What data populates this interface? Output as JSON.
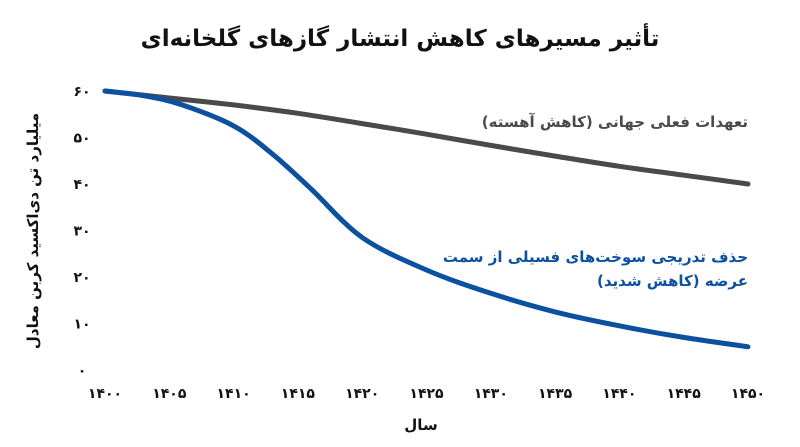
{
  "chart_data": {
    "type": "line",
    "title": "تأثیر مسیرهای کاهش انتشار گازهای گلخانه‌ای",
    "xlabel": "سال",
    "ylabel": "میلیارد تن دی‌اکسید کربن معادل",
    "xlim": [
      1400,
      1450
    ],
    "ylim": [
      0,
      60
    ],
    "grid": false,
    "x_ticks": [
      1400,
      1405,
      1410,
      1415,
      1420,
      1425,
      1430,
      1435,
      1440,
      1445,
      1450
    ],
    "x_tick_labels": [
      "۱۴۰۰",
      "۱۴۰۵",
      "۱۴۱۰",
      "۱۴۱۵",
      "۱۴۲۰",
      "۱۴۲۵",
      "۱۴۳۰",
      "۱۴۳۵",
      "۱۴۴۰",
      "۱۴۴۵",
      "۱۴۵۰"
    ],
    "y_ticks": [
      0,
      10,
      20,
      30,
      40,
      50,
      60
    ],
    "y_tick_labels": [
      "۰",
      "۱۰",
      "۲۰",
      "۳۰",
      "۴۰",
      "۵۰",
      "۶۰"
    ],
    "series": [
      {
        "label_lines": [
          "تعهدات فعلی جهانی (کاهش آهسته)"
        ],
        "color": "#4a4a4a",
        "x": [
          1400,
          1405,
          1410,
          1415,
          1420,
          1425,
          1430,
          1435,
          1440,
          1445,
          1450
        ],
        "y": [
          60,
          58.5,
          57,
          55.2,
          53,
          50.7,
          48.3,
          46,
          43.8,
          41.9,
          40
        ]
      },
      {
        "label_lines": [
          "حذف تدریجی سوخت‌های فسیلی از سمت",
          "عرضه (کاهش شدید)"
        ],
        "color": "#0b51a0",
        "x": [
          1400,
          1403,
          1406,
          1410,
          1413,
          1416,
          1420,
          1425,
          1430,
          1435,
          1440,
          1445,
          1450
        ],
        "y": [
          60,
          59,
          57,
          52.5,
          46.5,
          39,
          28.5,
          21.5,
          16.5,
          12.5,
          9.5,
          7,
          5
        ]
      }
    ]
  }
}
